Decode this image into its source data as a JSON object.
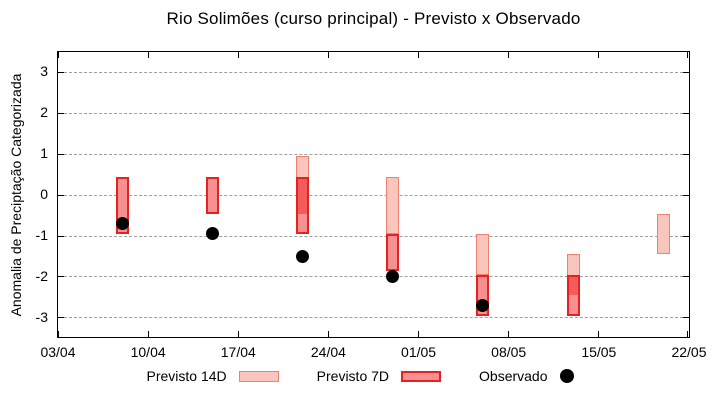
{
  "chart_data": {
    "type": "bar",
    "subtype": "forecast-range-boxes-with-observed-points",
    "title": "Rio Solimões (curso principal) - Previsto x Observado",
    "ylabel": "Anomalia de Preciptação Categorizada",
    "xlabel": "",
    "grid": "horizontal-dashed",
    "ylim": [
      -3.47,
      3.5
    ],
    "y_ticks": [
      -3,
      -2,
      -1,
      0,
      1,
      2,
      3
    ],
    "x_tick_labels": [
      "03/04",
      "10/04",
      "17/04",
      "24/04",
      "01/05",
      "08/05",
      "15/05",
      "22/05"
    ],
    "x_tick_days": [
      0,
      7,
      14,
      21,
      28,
      35,
      42,
      49
    ],
    "x_total_days": 49,
    "legend_items": [
      {
        "label": "Previsto 14D",
        "swatch": "box-14d"
      },
      {
        "label": "Previsto 7D",
        "swatch": "box-7d"
      },
      {
        "label": "Observado",
        "swatch": "dot"
      }
    ],
    "series": [
      {
        "date": "08/04",
        "day": 5,
        "previsto_14d": null,
        "previsto_7d": [
          -0.95,
          0.45
        ],
        "observado": -0.7
      },
      {
        "date": "15/04",
        "day": 12,
        "previsto_14d": null,
        "previsto_7d": [
          -0.45,
          0.45
        ],
        "observado": -0.95
      },
      {
        "date": "22/04",
        "day": 19,
        "previsto_14d": [
          -0.45,
          0.95
        ],
        "previsto_7d": [
          -0.95,
          0.45
        ],
        "observado": -1.5
      },
      {
        "date": "29/04",
        "day": 26,
        "previsto_14d": [
          -0.95,
          0.45
        ],
        "previsto_7d": [
          -1.85,
          -0.95
        ],
        "observado": -2.0
      },
      {
        "date": "06/05",
        "day": 33,
        "previsto_14d": [
          -1.95,
          -0.95
        ],
        "previsto_7d": [
          -2.95,
          -1.95
        ],
        "observado": -2.7
      },
      {
        "date": "13/05",
        "day": 40,
        "previsto_14d": [
          -2.45,
          -1.45
        ],
        "previsto_7d": [
          -2.95,
          -1.95
        ],
        "observado": null
      },
      {
        "date": "20/05",
        "day": 47,
        "previsto_14d": [
          -1.45,
          -0.45
        ],
        "previsto_7d": null,
        "observado": null
      }
    ],
    "colors": {
      "p14_fill": "#f9c6bd",
      "p14_border": "#ef8170",
      "p7_fill": "#f79191",
      "p7_border": "#e52222",
      "overlap_fill": "#f45c5c",
      "observed": "#000000",
      "grid": "#9e9e9e",
      "axis": "#000000",
      "background": "#ffffff"
    }
  }
}
